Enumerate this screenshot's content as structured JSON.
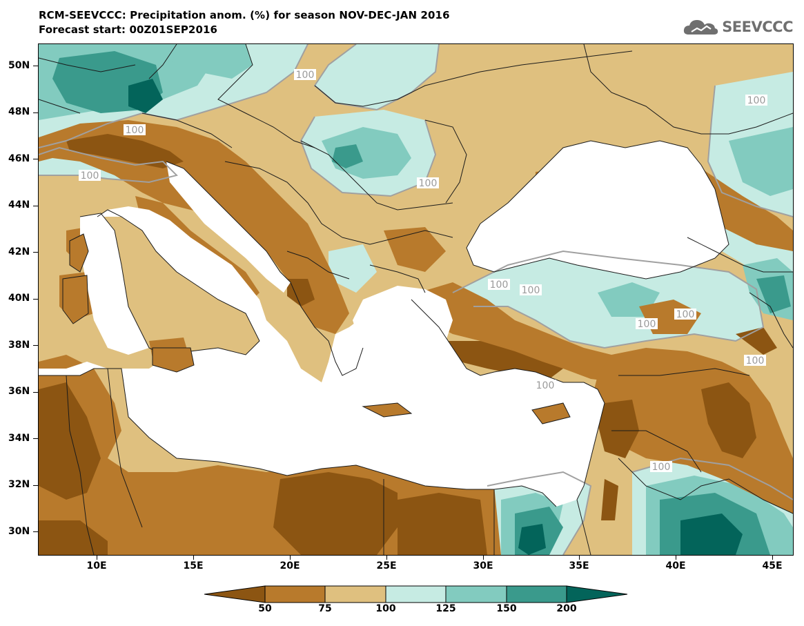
{
  "header": {
    "title_line1": "RCM-SEEVCCC: Precipitation anom. (%) for season NOV-DEC-JAN 2016",
    "title_line2": "Forecast start: 00Z01SEP2016",
    "logo_text": "SEEVCCC"
  },
  "map": {
    "lat_labels": [
      "50N",
      "48N",
      "46N",
      "44N",
      "42N",
      "40N",
      "38N",
      "36N",
      "34N",
      "32N",
      "30N"
    ],
    "lon_labels": [
      "10E",
      "15E",
      "20E",
      "25E",
      "30E",
      "35E",
      "40E",
      "45E"
    ],
    "contour_label": "100"
  },
  "colorbar": {
    "colors": [
      "#8c5512",
      "#b87a2c",
      "#dfc07f",
      "#c6ebe3",
      "#82cbbf",
      "#3a9a8c",
      "#03645a"
    ],
    "labels": [
      "50",
      "75",
      "100",
      "125",
      "150",
      "200"
    ]
  },
  "palette": {
    "sea": "#ffffff",
    "border": "#1a1a1a",
    "contour": "#a0a0a0"
  }
}
